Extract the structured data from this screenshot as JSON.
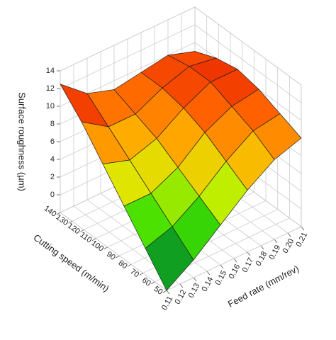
{
  "chart_data": {
    "type": "surface",
    "xlabel": "Feed rate (mm/rev)",
    "ylabel": "Cutting speed (m/min)",
    "zlabel": "Surface roughness (µm)",
    "x": [
      0.11,
      0.13,
      0.15,
      0.17,
      0.19,
      0.21
    ],
    "y": [
      50,
      68,
      86,
      104,
      122,
      140
    ],
    "z": [
      [
        -2,
        0,
        2.5,
        5,
        7,
        8
      ],
      [
        1,
        2,
        4,
        6.5,
        8.5,
        9
      ],
      [
        4,
        4,
        5.5,
        8,
        9.5,
        10
      ],
      [
        7,
        6,
        7,
        9,
        10.5,
        10.5
      ],
      [
        10,
        8,
        8,
        9.5,
        10.5,
        10
      ],
      [
        12.5,
        10,
        9,
        9.5,
        10,
        9
      ]
    ],
    "xlim": [
      0.11,
      0.21
    ],
    "ylim": [
      50,
      140
    ],
    "zlim": [
      -2,
      14
    ],
    "xticks": [
      0.11,
      0.12,
      0.13,
      0.14,
      0.15,
      0.16,
      0.17,
      0.18,
      0.19,
      {
        "value": 0.2,
        "label": "0.20"
      },
      0.21
    ],
    "yticks": [
      50,
      60,
      70,
      80,
      90,
      100,
      110,
      120,
      130,
      140
    ],
    "zticks": [
      0,
      2,
      4,
      6,
      8,
      10,
      12,
      14
    ],
    "colorscale": [
      "#0a4a2a",
      "#10a020",
      "#40e000",
      "#d8f000",
      "#ffb000",
      "#ff5a00",
      "#d80000",
      "#a01010"
    ],
    "grid": true
  }
}
